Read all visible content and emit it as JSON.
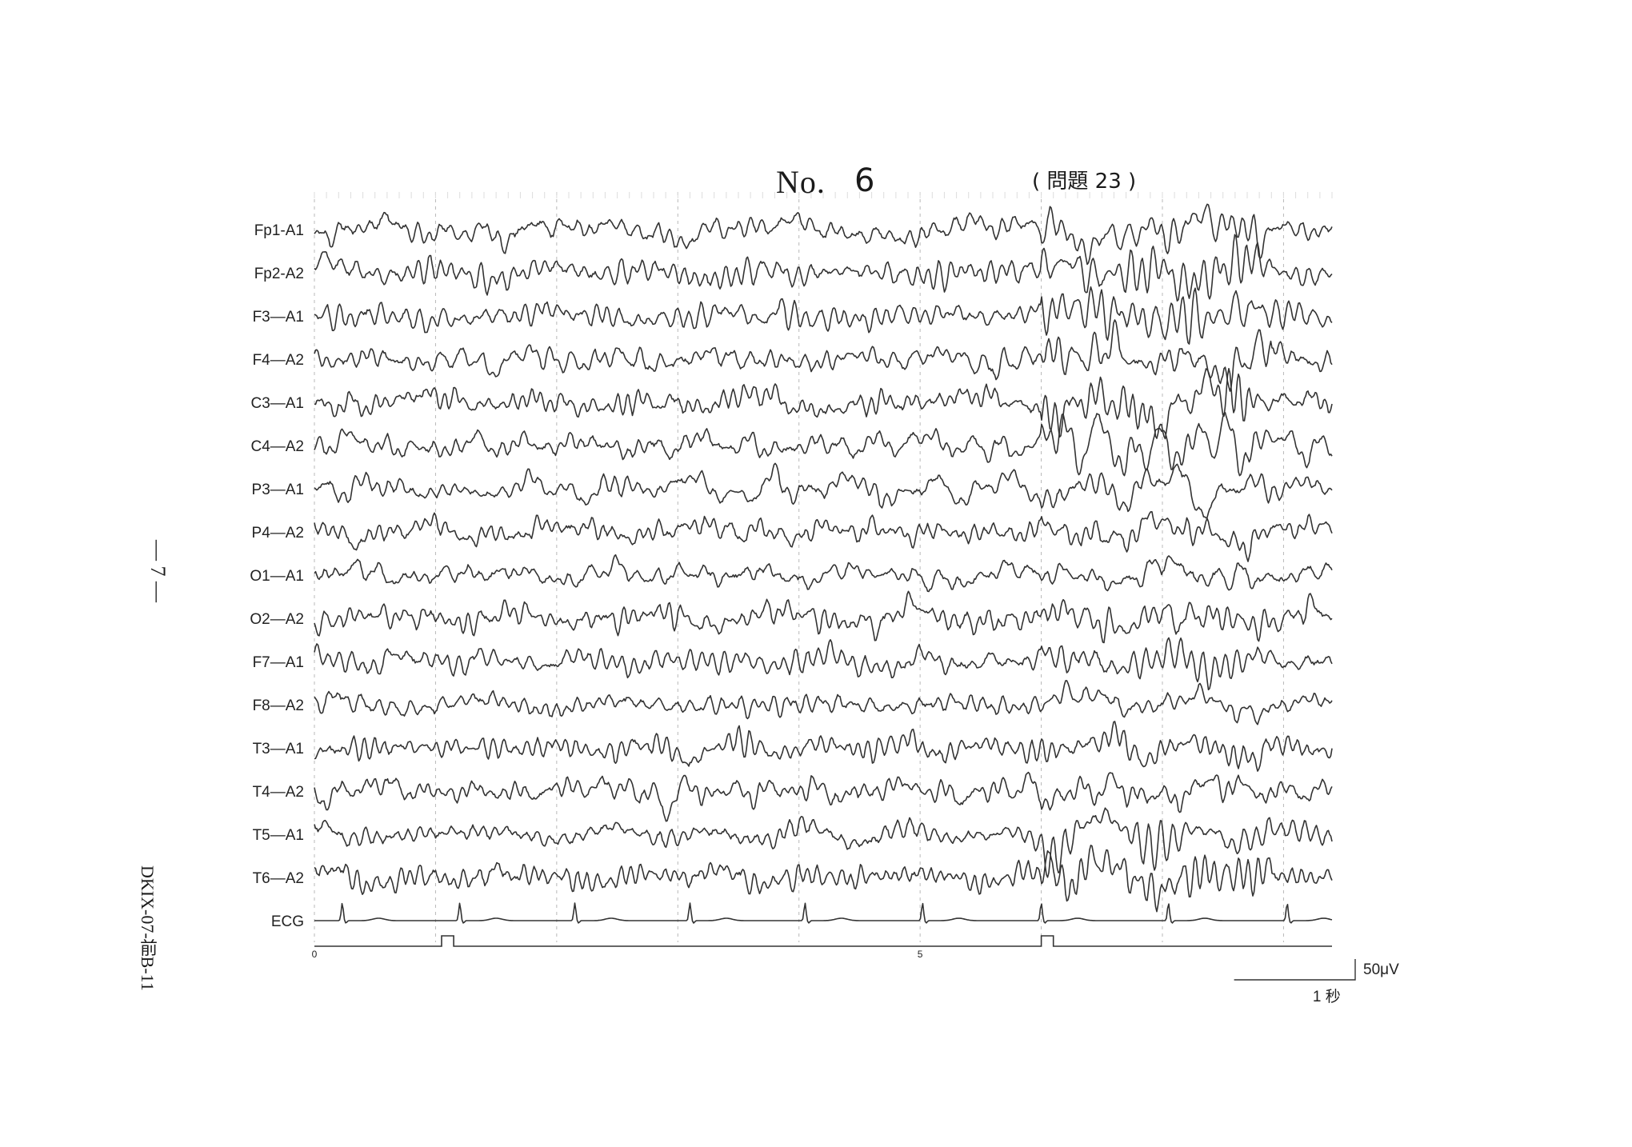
{
  "header": {
    "no_label": "No.",
    "no_value": "6",
    "question": "( 問題 23 )"
  },
  "margin": {
    "page_number": "— 7 —",
    "doc_code": "DKIX-07-前B-11"
  },
  "chart_data": {
    "type": "line",
    "title": "",
    "channels": [
      "Fp1-A1",
      "Fp2-A2",
      "F3—A1",
      "F4—A2",
      "C3—A1",
      "C4—A2",
      "P3—A1",
      "P4—A2",
      "O1—A1",
      "O2—A2",
      "F7—A1",
      "F8—A2",
      "T3—A1",
      "T4—A2",
      "T5—A1",
      "T6—A2",
      "ECG"
    ],
    "time_axis": {
      "range_s": [
        0,
        8.4
      ],
      "tick_labels": [
        "0",
        "5"
      ],
      "tick_values_s": [
        0,
        5
      ]
    },
    "ecg_r_peaks_s": [
      0.23,
      1.2,
      2.15,
      3.1,
      4.05,
      5.02,
      6.0,
      7.05,
      8.03
    ],
    "photic_marker_s": [
      [
        1.05,
        1.15
      ],
      [
        6.0,
        6.1
      ]
    ],
    "calibration": {
      "amplitude_label": "50μV",
      "time_label": "1 秒"
    },
    "colors": {
      "trace": "#333333",
      "grid_major": "#b8b8b8",
      "grid_minor": "#dddddd"
    }
  }
}
